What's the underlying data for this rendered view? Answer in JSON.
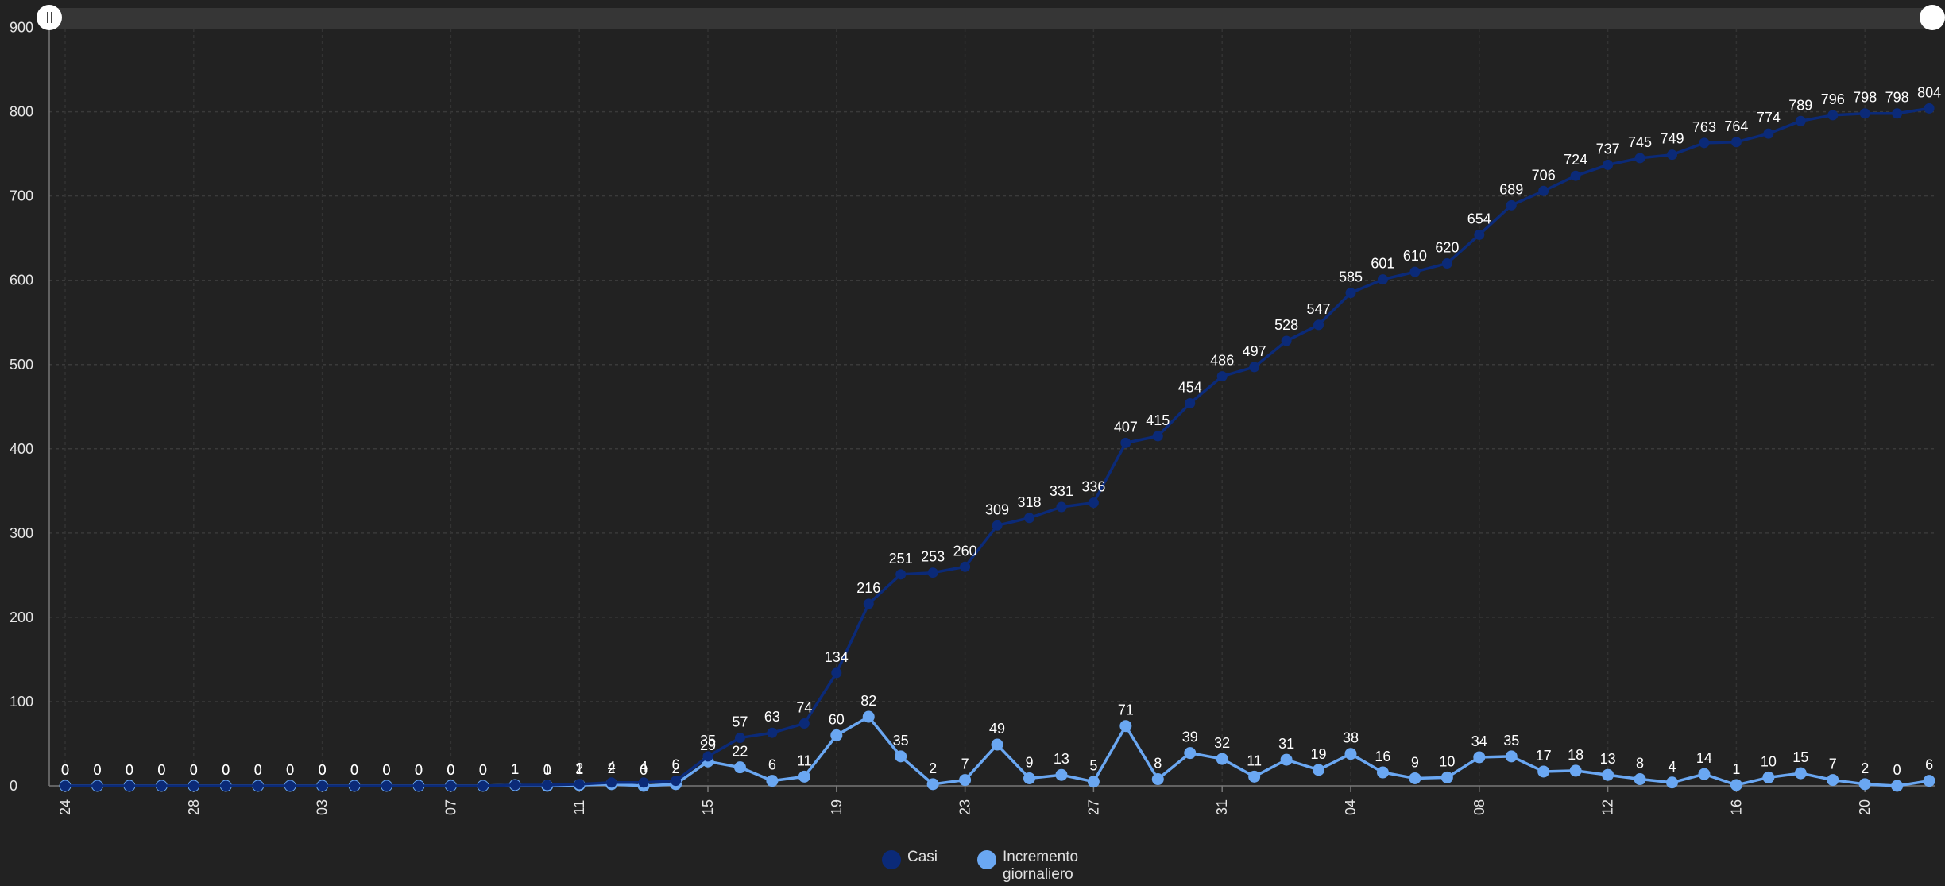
{
  "chart_data": {
    "type": "line",
    "x_tick_labels": [
      "24",
      "28",
      "03",
      "07",
      "11",
      "15",
      "19",
      "23",
      "27",
      "31",
      "04",
      "08",
      "12",
      "16",
      "20"
    ],
    "ylim": [
      0,
      900
    ],
    "y_ticks": [
      0,
      100,
      200,
      300,
      400,
      500,
      600,
      700,
      800,
      900
    ],
    "grid": true,
    "legend_position": "bottom",
    "series": [
      {
        "name": "Casi",
        "color": "#0b2a78",
        "values": [
          0,
          0,
          0,
          0,
          0,
          0,
          0,
          0,
          0,
          0,
          0,
          0,
          0,
          0,
          1,
          1,
          2,
          4,
          4,
          6,
          35,
          57,
          63,
          74,
          134,
          216,
          251,
          253,
          260,
          309,
          318,
          331,
          336,
          407,
          415,
          454,
          486,
          497,
          528,
          547,
          585,
          601,
          610,
          620,
          654,
          689,
          706,
          724,
          737,
          745,
          749,
          763,
          764,
          774,
          789,
          796,
          798,
          798,
          804
        ]
      },
      {
        "name": "Incremento giornaliero",
        "color": "#6aa7f2",
        "values": [
          0,
          0,
          0,
          0,
          0,
          0,
          0,
          0,
          0,
          0,
          0,
          0,
          0,
          0,
          1,
          0,
          1,
          2,
          0,
          2,
          29,
          22,
          6,
          11,
          60,
          82,
          35,
          2,
          7,
          49,
          9,
          13,
          5,
          71,
          8,
          39,
          32,
          11,
          31,
          19,
          38,
          16,
          9,
          10,
          34,
          35,
          17,
          18,
          13,
          8,
          4,
          14,
          1,
          10,
          15,
          7,
          2,
          0,
          6
        ]
      }
    ]
  },
  "scrollbar": {
    "left_grip_icon": "pause-icon",
    "right_grip_icon": "circle-handle-icon"
  }
}
